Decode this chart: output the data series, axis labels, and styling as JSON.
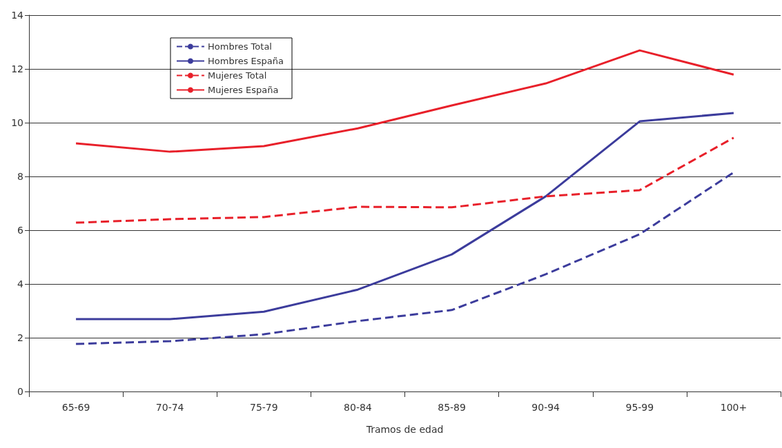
{
  "chart_data": {
    "type": "line",
    "xlabel": "Tramos de edad",
    "categories": [
      "65-69",
      "70-74",
      "75-79",
      "80-84",
      "85-89",
      "90-94",
      "95-99",
      "100+"
    ],
    "series": [
      {
        "name": "Hombres Total",
        "color": "#3c3c9c",
        "line_style": "dashed",
        "values": [
          1.77,
          1.87,
          2.13,
          2.62,
          3.03,
          4.36,
          5.85,
          8.15
        ]
      },
      {
        "name": "Hombres España",
        "color": "#3c3c9c",
        "line_style": "solid",
        "values": [
          2.69,
          2.69,
          2.97,
          3.79,
          5.1,
          7.26,
          10.05,
          10.36
        ]
      },
      {
        "name": "Mujeres Total",
        "color": "#e8202a",
        "line_style": "dashed",
        "values": [
          6.28,
          6.41,
          6.49,
          6.87,
          6.85,
          7.26,
          7.49,
          9.44
        ]
      },
      {
        "name": "Mujeres España",
        "color": "#e8202a",
        "line_style": "solid",
        "values": [
          9.23,
          8.92,
          9.13,
          9.79,
          10.64,
          11.46,
          12.69,
          11.79
        ]
      }
    ],
    "ylim": [
      0,
      14
    ],
    "yticks": [
      0,
      2,
      4,
      6,
      8,
      10,
      12,
      14
    ],
    "grid": "y",
    "legend": "top left",
    "marker": "none"
  }
}
